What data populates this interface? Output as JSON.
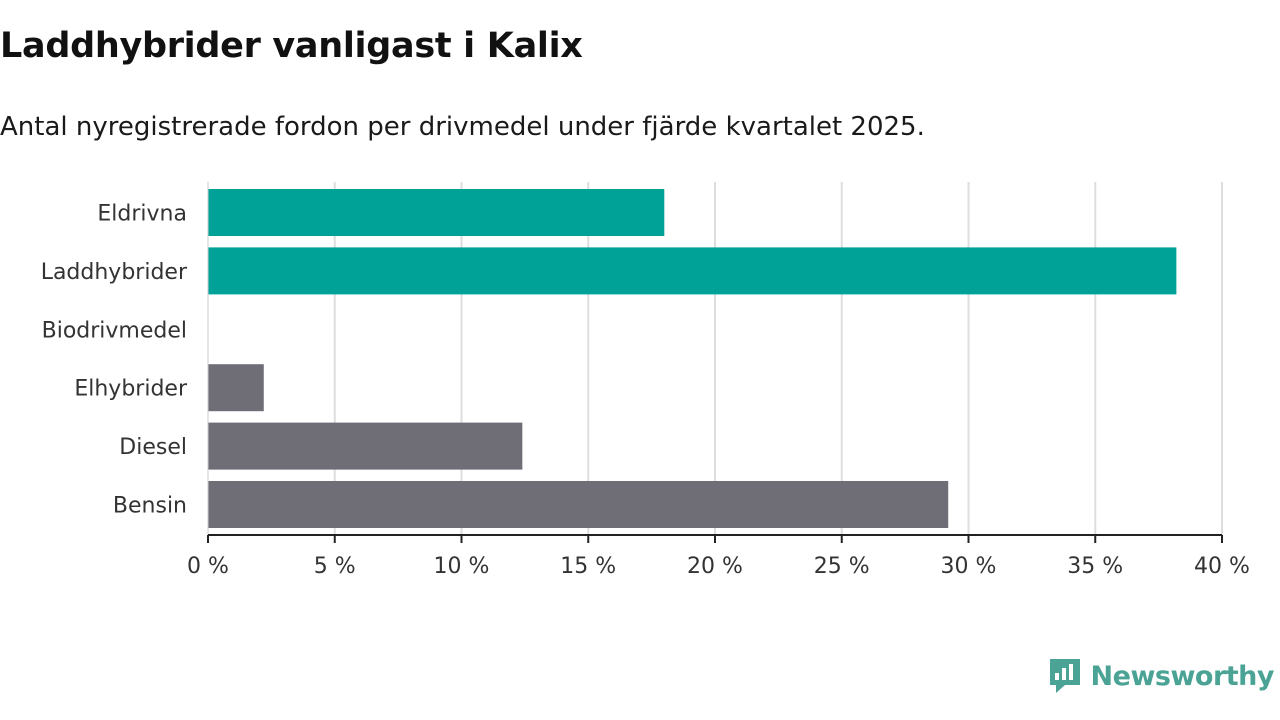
{
  "chart_data": {
    "type": "bar",
    "orientation": "horizontal",
    "title": "Laddhybrider vanligast i Kalix",
    "subtitle": "Antal nyregistrerade fordon per drivmedel under fjärde kvartalet 2025.",
    "categories": [
      "Eldrivna",
      "Laddhybrider",
      "Biodrivmedel",
      "Elhybrider",
      "Diesel",
      "Bensin"
    ],
    "values": [
      18.0,
      38.2,
      0,
      2.2,
      12.4,
      29.2
    ],
    "bar_colors": [
      "#00a298",
      "#00a298",
      "#6f6e76",
      "#6f6e76",
      "#6f6e76",
      "#6f6e76"
    ],
    "xlim": [
      0,
      40
    ],
    "xticks": [
      0,
      5,
      10,
      15,
      20,
      25,
      30,
      35,
      40
    ],
    "xtick_labels": [
      "0 %",
      "5 %",
      "10 %",
      "15 %",
      "20 %",
      "25 %",
      "30 %",
      "35 %",
      "40 %"
    ],
    "xlabel": "",
    "ylabel": "",
    "grid": true
  },
  "brand": {
    "name": "Newsworthy",
    "color": "#4aa394"
  },
  "colors": {
    "gridline": "#dddddd",
    "axis": "#222222"
  }
}
